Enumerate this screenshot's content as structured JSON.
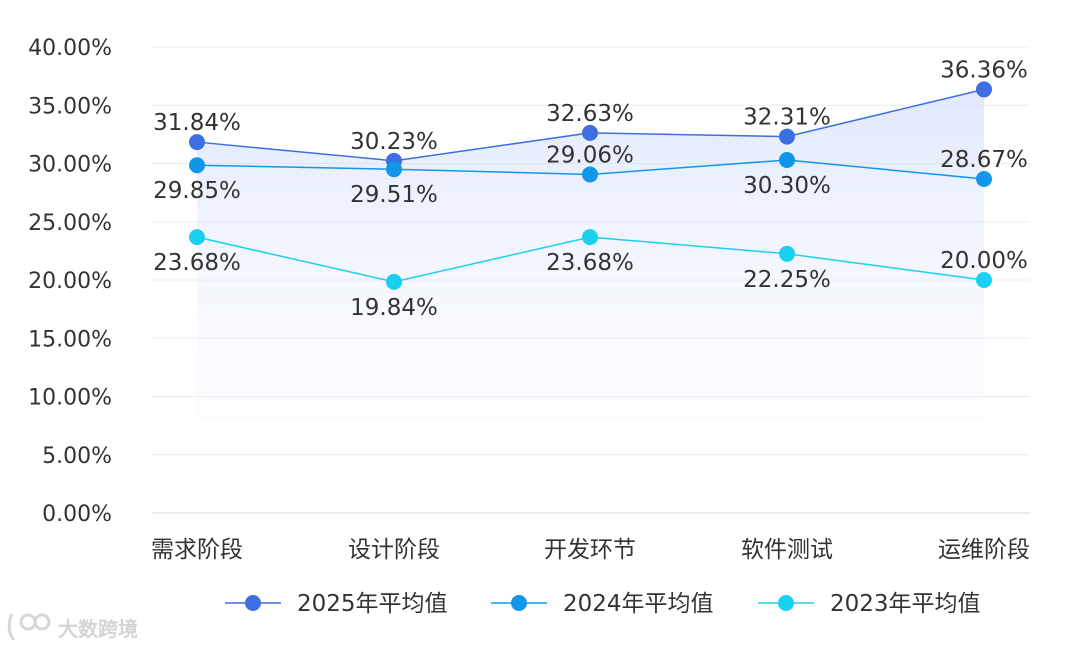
{
  "chart_data": {
    "type": "line",
    "title": "",
    "xlabel": "",
    "ylabel": "",
    "categories": [
      "需求阶段",
      "设计阶段",
      "开发环节",
      "软件测试",
      "运维阶段"
    ],
    "ylim": [
      0,
      40
    ],
    "yticks": [
      "0.00%",
      "5.00%",
      "10.00%",
      "15.00%",
      "20.00%",
      "25.00%",
      "30.00%",
      "35.00%",
      "40.00%"
    ],
    "grid": true,
    "legend_position": "bottom",
    "series": [
      {
        "name": "2025年平均值",
        "values": [
          31.84,
          30.23,
          32.63,
          32.31,
          36.36
        ],
        "labels": [
          "31.84%",
          "30.23%",
          "32.63%",
          "32.31%",
          "36.36%"
        ],
        "color": "#3d6fe3",
        "label_side": [
          "above",
          "above",
          "above",
          "above",
          "above"
        ]
      },
      {
        "name": "2024年平均值",
        "values": [
          29.85,
          29.51,
          29.06,
          30.3,
          28.67
        ],
        "labels": [
          "29.85%",
          "29.51%",
          "29.06%",
          "30.30%",
          "28.67%"
        ],
        "color": "#1296ea",
        "label_side": [
          "below",
          "below",
          "above",
          "below",
          "above"
        ]
      },
      {
        "name": "2023年平均值",
        "values": [
          23.68,
          19.84,
          23.68,
          22.25,
          20.0
        ],
        "labels": [
          "23.68%",
          "19.84%",
          "23.68%",
          "22.25%",
          "20.00%"
        ],
        "color": "#1ad0f0",
        "label_side": [
          "below",
          "below",
          "below",
          "below",
          "above"
        ]
      }
    ]
  },
  "watermark": {
    "text": "大数跨境"
  }
}
